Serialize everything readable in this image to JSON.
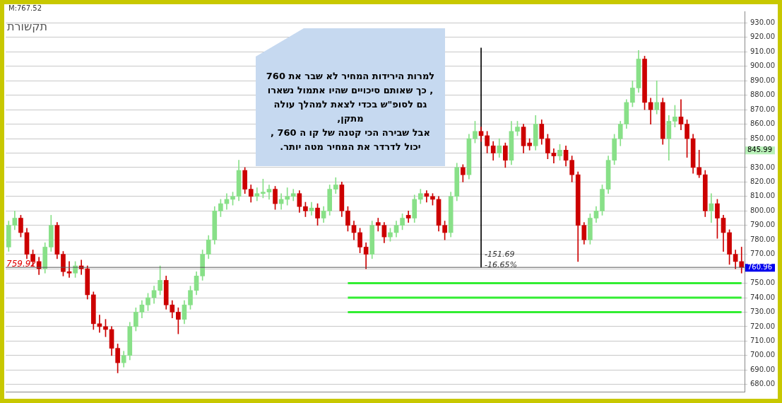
{
  "chart_data": {
    "type": "candlestick",
    "title": "תקשורת",
    "categories": [
      null,
      null,
      null,
      null,
      null,
      null,
      null,
      null,
      null,
      null,
      null,
      null,
      null,
      null,
      null,
      null,
      null,
      null,
      null,
      null,
      null,
      null,
      null,
      null,
      null,
      null,
      null,
      null,
      null,
      null,
      null,
      null,
      null,
      null,
      null,
      null,
      null,
      null,
      null,
      null,
      null,
      null,
      null,
      null,
      null,
      null,
      null,
      null,
      null,
      null,
      null,
      null,
      null,
      null,
      null,
      null,
      null,
      null,
      null,
      null,
      null,
      null,
      null,
      null,
      null,
      null,
      null,
      null,
      null,
      null,
      null,
      null,
      null,
      null,
      null,
      null,
      null,
      null,
      null,
      null,
      null,
      null,
      null,
      null,
      null,
      null,
      null,
      null,
      null,
      null,
      null,
      null,
      null,
      null,
      null,
      null,
      null,
      null,
      null,
      null,
      null,
      null,
      null,
      null,
      null,
      null,
      null,
      null,
      null,
      null,
      null,
      null,
      null,
      null,
      null,
      null,
      null,
      null,
      null,
      null,
      null,
      null
    ],
    "ohlc": [
      [
        775,
        793,
        772,
        790
      ],
      [
        790,
        800,
        787,
        795
      ],
      [
        795,
        797,
        782,
        785
      ],
      [
        785,
        788,
        767,
        770
      ],
      [
        770,
        773,
        762,
        765
      ],
      [
        765,
        768,
        756,
        760
      ],
      [
        760,
        778,
        757,
        775
      ],
      [
        775,
        797,
        772,
        790
      ],
      [
        790,
        792,
        767,
        770
      ],
      [
        770,
        772,
        755,
        758
      ],
      [
        758,
        765,
        754,
        757
      ],
      [
        757,
        765,
        754,
        762
      ],
      [
        762,
        766,
        756,
        760
      ],
      [
        760,
        762,
        739,
        742
      ],
      [
        742,
        744,
        718,
        722
      ],
      [
        722,
        728,
        716,
        720
      ],
      [
        720,
        725,
        713,
        718
      ],
      [
        718,
        720,
        700,
        705
      ],
      [
        705,
        708,
        688,
        695
      ],
      [
        695,
        703,
        692,
        700
      ],
      [
        700,
        723,
        697,
        720
      ],
      [
        720,
        733,
        717,
        730
      ],
      [
        730,
        738,
        726,
        735
      ],
      [
        735,
        743,
        731,
        740
      ],
      [
        740,
        748,
        736,
        745
      ],
      [
        745,
        762,
        742,
        752
      ],
      [
        752,
        755,
        732,
        735
      ],
      [
        735,
        738,
        726,
        730
      ],
      [
        730,
        733,
        715,
        725
      ],
      [
        725,
        738,
        722,
        735
      ],
      [
        735,
        748,
        732,
        745
      ],
      [
        745,
        758,
        742,
        755
      ],
      [
        755,
        773,
        752,
        770
      ],
      [
        770,
        783,
        767,
        780
      ],
      [
        780,
        803,
        777,
        800
      ],
      [
        800,
        808,
        796,
        805
      ],
      [
        805,
        812,
        801,
        808
      ],
      [
        808,
        813,
        804,
        810
      ],
      [
        810,
        835,
        807,
        828
      ],
      [
        828,
        830,
        812,
        815
      ],
      [
        815,
        818,
        806,
        810
      ],
      [
        810,
        816,
        807,
        812
      ],
      [
        812,
        822,
        809,
        813
      ],
      [
        813,
        818,
        808,
        815
      ],
      [
        815,
        817,
        801,
        805
      ],
      [
        805,
        812,
        801,
        808
      ],
      [
        808,
        816,
        804,
        810
      ],
      [
        810,
        815,
        807,
        812
      ],
      [
        812,
        814,
        799,
        803
      ],
      [
        803,
        806,
        796,
        800
      ],
      [
        800,
        806,
        797,
        802
      ],
      [
        802,
        805,
        790,
        795
      ],
      [
        795,
        803,
        792,
        800
      ],
      [
        800,
        818,
        797,
        815
      ],
      [
        815,
        823,
        812,
        818
      ],
      [
        818,
        820,
        796,
        800
      ],
      [
        800,
        803,
        786,
        790
      ],
      [
        790,
        793,
        780,
        785
      ],
      [
        785,
        788,
        771,
        775
      ],
      [
        775,
        778,
        760,
        770
      ],
      [
        770,
        793,
        767,
        790
      ],
      [
        792,
        795,
        786,
        790
      ],
      [
        790,
        792,
        778,
        782
      ],
      [
        782,
        788,
        779,
        785
      ],
      [
        785,
        793,
        782,
        790
      ],
      [
        790,
        798,
        787,
        795
      ],
      [
        797,
        800,
        792,
        795
      ],
      [
        795,
        811,
        792,
        808
      ],
      [
        808,
        815,
        805,
        812
      ],
      [
        812,
        814,
        806,
        810
      ],
      [
        810,
        812,
        804,
        808
      ],
      [
        808,
        810,
        786,
        790
      ],
      [
        790,
        793,
        780,
        785
      ],
      [
        785,
        813,
        782,
        810
      ],
      [
        810,
        833,
        807,
        830
      ],
      [
        830,
        832,
        820,
        825
      ],
      [
        825,
        853,
        822,
        850
      ],
      [
        850,
        862,
        847,
        855
      ],
      [
        855,
        858,
        848,
        852
      ],
      [
        852,
        855,
        840,
        845
      ],
      [
        845,
        848,
        835,
        840
      ],
      [
        840,
        850,
        837,
        845
      ],
      [
        845,
        847,
        830,
        835
      ],
      [
        835,
        862,
        832,
        855
      ],
      [
        855,
        862,
        852,
        858
      ],
      [
        858,
        860,
        840,
        845
      ],
      [
        847,
        850,
        842,
        845
      ],
      [
        845,
        866,
        842,
        860
      ],
      [
        860,
        863,
        846,
        850
      ],
      [
        850,
        853,
        836,
        840
      ],
      [
        840,
        843,
        833,
        838
      ],
      [
        838,
        846,
        835,
        842
      ],
      [
        842,
        845,
        831,
        835
      ],
      [
        835,
        838,
        820,
        825
      ],
      [
        825,
        827,
        765,
        790
      ],
      [
        790,
        792,
        777,
        780
      ],
      [
        780,
        798,
        777,
        795
      ],
      [
        795,
        803,
        792,
        800
      ],
      [
        800,
        818,
        797,
        815
      ],
      [
        815,
        838,
        812,
        835
      ],
      [
        835,
        853,
        832,
        850
      ],
      [
        850,
        862,
        845,
        860
      ],
      [
        860,
        877,
        857,
        875
      ],
      [
        875,
        890,
        872,
        885
      ],
      [
        885,
        911,
        882,
        905
      ],
      [
        905,
        907,
        870,
        875
      ],
      [
        875,
        878,
        860,
        870
      ],
      [
        870,
        890,
        867,
        875
      ],
      [
        875,
        878,
        846,
        850
      ],
      [
        850,
        866,
        835,
        862
      ],
      [
        862,
        873,
        858,
        865
      ],
      [
        865,
        877,
        856,
        860
      ],
      [
        860,
        863,
        837,
        850
      ],
      [
        850,
        853,
        826,
        830
      ],
      [
        830,
        842,
        823,
        825
      ],
      [
        825,
        828,
        796,
        800
      ],
      [
        800,
        812,
        792,
        805
      ],
      [
        805,
        808,
        781,
        795
      ],
      [
        795,
        797,
        772,
        785
      ],
      [
        785,
        787,
        763,
        770
      ],
      [
        770,
        773,
        760,
        765
      ],
      [
        765,
        775,
        757,
        760.96
      ]
    ],
    "colors": [
      "#88e088",
      "#88e088",
      "#cc0000",
      "#cc0000",
      "#cc0000",
      "#cc0000",
      "#88e088",
      "#88e088",
      "#cc0000",
      "#cc0000",
      "#cc0000",
      "#88e088",
      "#cc0000",
      "#cc0000",
      "#cc0000",
      "#cc0000",
      "#cc0000",
      "#cc0000",
      "#cc0000",
      "#88e088",
      "#88e088",
      "#88e088",
      "#88e088",
      "#88e088",
      "#88e088",
      "#88e088",
      "#cc0000",
      "#cc0000",
      "#cc0000",
      "#88e088",
      "#88e088",
      "#88e088",
      "#88e088",
      "#88e088",
      "#88e088",
      "#88e088",
      "#88e088",
      "#88e088",
      "#88e088",
      "#cc0000",
      "#cc0000",
      "#88e088",
      "#88e088",
      "#88e088",
      "#cc0000",
      "#88e088",
      "#88e088",
      "#88e088",
      "#cc0000",
      "#cc0000",
      "#88e088",
      "#cc0000",
      "#88e088",
      "#88e088",
      "#88e088",
      "#cc0000",
      "#cc0000",
      "#cc0000",
      "#cc0000",
      "#cc0000",
      "#88e088",
      "#cc0000",
      "#cc0000",
      "#88e088",
      "#88e088",
      "#88e088",
      "#cc0000",
      "#88e088",
      "#88e088",
      "#cc0000",
      "#cc0000",
      "#cc0000",
      "#cc0000",
      "#88e088",
      "#88e088",
      "#cc0000",
      "#88e088",
      "#88e088",
      "#cc0000",
      "#cc0000",
      "#cc0000",
      "#88e088",
      "#cc0000",
      "#88e088",
      "#88e088",
      "#cc0000",
      "#cc0000",
      "#88e088",
      "#cc0000",
      "#cc0000",
      "#cc0000",
      "#88e088",
      "#cc0000",
      "#cc0000",
      "#cc0000",
      "#cc0000",
      "#88e088",
      "#88e088",
      "#88e088",
      "#88e088",
      "#88e088",
      "#88e088",
      "#88e088",
      "#88e088",
      "#88e088",
      "#cc0000",
      "#cc0000",
      "#88e088",
      "#cc0000",
      "#88e088",
      "#88e088",
      "#cc0000",
      "#cc0000",
      "#cc0000",
      "#cc0000",
      "#cc0000",
      "#88e088",
      "#cc0000",
      "#cc0000",
      "#cc0000",
      "#cc0000",
      "#cc0000"
    ],
    "series": [
      {
        "type": "bar",
        "color": "#000000",
        "base": [
          null,
          null,
          null,
          null,
          null,
          null,
          null,
          null,
          null,
          null,
          null,
          null,
          null,
          null,
          null,
          null,
          null,
          null,
          null,
          null,
          null,
          null,
          null,
          null,
          null,
          null,
          null,
          null,
          null,
          null,
          null,
          null,
          null,
          null,
          null,
          null,
          null,
          null,
          null,
          null,
          null,
          null,
          null,
          null,
          null,
          null,
          null,
          null,
          null,
          null,
          null,
          null,
          null,
          null,
          null,
          null,
          null,
          null,
          null,
          null,
          null,
          null,
          null,
          null,
          null,
          null,
          null,
          null,
          null,
          null,
          null,
          null,
          null,
          null,
          null,
          null,
          null,
          null,
          760.96,
          null,
          null,
          null,
          null,
          null,
          null,
          null,
          null,
          null,
          null,
          null,
          null,
          null,
          null,
          null,
          null,
          null,
          null,
          null,
          null,
          null,
          null,
          null,
          null,
          null,
          null,
          null,
          null,
          null,
          null,
          null,
          null,
          null,
          null,
          null,
          null,
          null,
          null,
          null,
          null,
          null,
          null,
          null
        ],
        "values": [
          null,
          null,
          null,
          null,
          null,
          null,
          null,
          null,
          null,
          null,
          null,
          null,
          null,
          null,
          null,
          null,
          null,
          null,
          null,
          null,
          null,
          null,
          null,
          null,
          null,
          null,
          null,
          null,
          null,
          null,
          null,
          null,
          null,
          null,
          null,
          null,
          null,
          null,
          null,
          null,
          null,
          null,
          null,
          null,
          null,
          null,
          null,
          null,
          null,
          null,
          null,
          null,
          null,
          null,
          null,
          null,
          null,
          null,
          null,
          null,
          null,
          null,
          null,
          null,
          null,
          null,
          null,
          null,
          null,
          null,
          null,
          null,
          null,
          null,
          null,
          null,
          null,
          null,
          151.69,
          null,
          null,
          null,
          null,
          null,
          null,
          null,
          null,
          null,
          null,
          null,
          null,
          null,
          null,
          null,
          null,
          null,
          null,
          null,
          null,
          null,
          null,
          null,
          null,
          null,
          null,
          null,
          null,
          null,
          null,
          null,
          null,
          null,
          null,
          null,
          null,
          null,
          null,
          null,
          null,
          null,
          null,
          null
        ]
      },
      {
        "type": "line",
        "color": "#33ee33",
        "values": [
          null,
          null,
          null,
          null,
          null,
          null,
          null,
          null,
          null,
          null,
          null,
          null,
          null,
          null,
          null,
          null,
          null,
          null,
          null,
          null,
          null,
          null,
          null,
          null,
          null,
          null,
          null,
          null,
          null,
          null,
          null,
          null,
          null,
          null,
          null,
          null,
          null,
          null,
          null,
          null,
          null,
          null,
          null,
          null,
          null,
          null,
          null,
          null,
          null,
          null,
          null,
          null,
          null,
          null,
          null,
          null,
          750,
          750,
          750,
          750,
          750,
          750,
          750,
          750,
          750,
          750,
          750,
          750,
          750,
          750,
          750,
          750,
          750,
          750,
          750,
          750,
          750,
          750,
          750,
          750,
          750,
          750,
          750,
          750,
          750,
          750,
          750,
          750,
          750,
          750,
          750,
          750,
          750,
          750,
          750,
          750,
          750,
          750,
          750,
          750,
          750,
          750,
          750,
          750,
          750,
          750,
          750,
          750,
          750,
          750,
          750,
          750,
          750,
          750,
          750,
          750,
          750,
          750,
          750,
          750,
          750,
          750
        ]
      },
      {
        "type": "line",
        "color": "#33ee33",
        "values": [
          null,
          null,
          null,
          null,
          null,
          null,
          null,
          null,
          null,
          null,
          null,
          null,
          null,
          null,
          null,
          null,
          null,
          null,
          null,
          null,
          null,
          null,
          null,
          null,
          null,
          null,
          null,
          null,
          null,
          null,
          null,
          null,
          null,
          null,
          null,
          null,
          null,
          null,
          null,
          null,
          null,
          null,
          null,
          null,
          null,
          null,
          null,
          null,
          null,
          null,
          null,
          null,
          null,
          null,
          null,
          null,
          740,
          740,
          740,
          740,
          740,
          740,
          740,
          740,
          740,
          740,
          740,
          740,
          740,
          740,
          740,
          740,
          740,
          740,
          740,
          740,
          740,
          740,
          740,
          740,
          740,
          740,
          740,
          740,
          740,
          740,
          740,
          740,
          740,
          740,
          740,
          740,
          740,
          740,
          740,
          740,
          740,
          740,
          740,
          740,
          740,
          740,
          740,
          740,
          740,
          740,
          740,
          740,
          740,
          740,
          740,
          740,
          740,
          740,
          740,
          740,
          740,
          740,
          740,
          740,
          740,
          740
        ]
      },
      {
        "type": "line",
        "color": "#33ee33",
        "values": [
          null,
          null,
          null,
          null,
          null,
          null,
          null,
          null,
          null,
          null,
          null,
          null,
          null,
          null,
          null,
          null,
          null,
          null,
          null,
          null,
          null,
          null,
          null,
          null,
          null,
          null,
          null,
          null,
          null,
          null,
          null,
          null,
          null,
          null,
          null,
          null,
          null,
          null,
          null,
          null,
          null,
          null,
          null,
          null,
          null,
          null,
          null,
          null,
          null,
          null,
          null,
          null,
          null,
          null,
          null,
          null,
          730,
          730,
          730,
          730,
          730,
          730,
          730,
          730,
          730,
          730,
          730,
          730,
          730,
          730,
          730,
          730,
          730,
          730,
          730,
          730,
          730,
          730,
          730,
          730,
          730,
          730,
          730,
          730,
          730,
          730,
          730,
          730,
          730,
          730,
          730,
          730,
          730,
          730,
          730,
          730,
          730,
          730,
          730,
          730,
          730,
          730,
          730,
          730,
          730,
          730,
          730,
          730,
          730,
          730,
          730,
          730,
          730,
          730,
          730,
          730,
          730,
          730,
          730,
          730,
          730,
          730
        ]
      }
    ],
    "ylim": [
      675,
      938
    ],
    "yticks": [
      {
        "value": 680,
        "label": "680.00"
      },
      {
        "value": 690,
        "label": "690.00"
      },
      {
        "value": 700,
        "label": "700.00"
      },
      {
        "value": 710,
        "label": "710.00"
      },
      {
        "value": 720,
        "label": "720.00"
      },
      {
        "value": 730,
        "label": "730.00"
      },
      {
        "value": 740,
        "label": "740.00"
      },
      {
        "value": 750,
        "label": "750.00"
      },
      {
        "value": 760,
        "label": null
      },
      {
        "value": 770,
        "label": "770.00"
      },
      {
        "value": 780,
        "label": "780.00"
      },
      {
        "value": 790,
        "label": "790.00"
      },
      {
        "value": 800,
        "label": "800.00"
      },
      {
        "value": 810,
        "label": "810.00"
      },
      {
        "value": 820,
        "label": "820.00"
      },
      {
        "value": 830,
        "label": "830.00"
      },
      {
        "value": 840,
        "label": null
      },
      {
        "value": 850,
        "label": "850.00"
      },
      {
        "value": 860,
        "label": "860.00"
      },
      {
        "value": 870,
        "label": "870.00"
      },
      {
        "value": 880,
        "label": "880.00"
      },
      {
        "value": 890,
        "label": "890.00"
      },
      {
        "value": 900,
        "label": "900.00"
      },
      {
        "value": 910,
        "label": "910.00"
      },
      {
        "value": 920,
        "label": "920.00"
      },
      {
        "value": 930,
        "label": "930.00"
      }
    ],
    "ref_lines": [
      {
        "axis": "y",
        "value": 760.96,
        "color": "#555555"
      }
    ],
    "annotations": [
      "למרות הירידות המחיר לא שבר את 760\n, כך שאותם סיכויים שהיו אתמול נשארו\nגם לסופ\"ש בכדי לצאת למהלך עולה\nמתקן,\nאבל שבירה הכי קטנה של קו ה 760 ,\nיכול לדרדר את המחיר מטה יותר.",
      "M:767.52",
      {
        "text": "759.92",
        "y": 759.92
      },
      "-151.69\n-16.65%",
      "845.99",
      "760.96"
    ],
    "grid": "y",
    "tick_labels": "y",
    "legend": false
  }
}
